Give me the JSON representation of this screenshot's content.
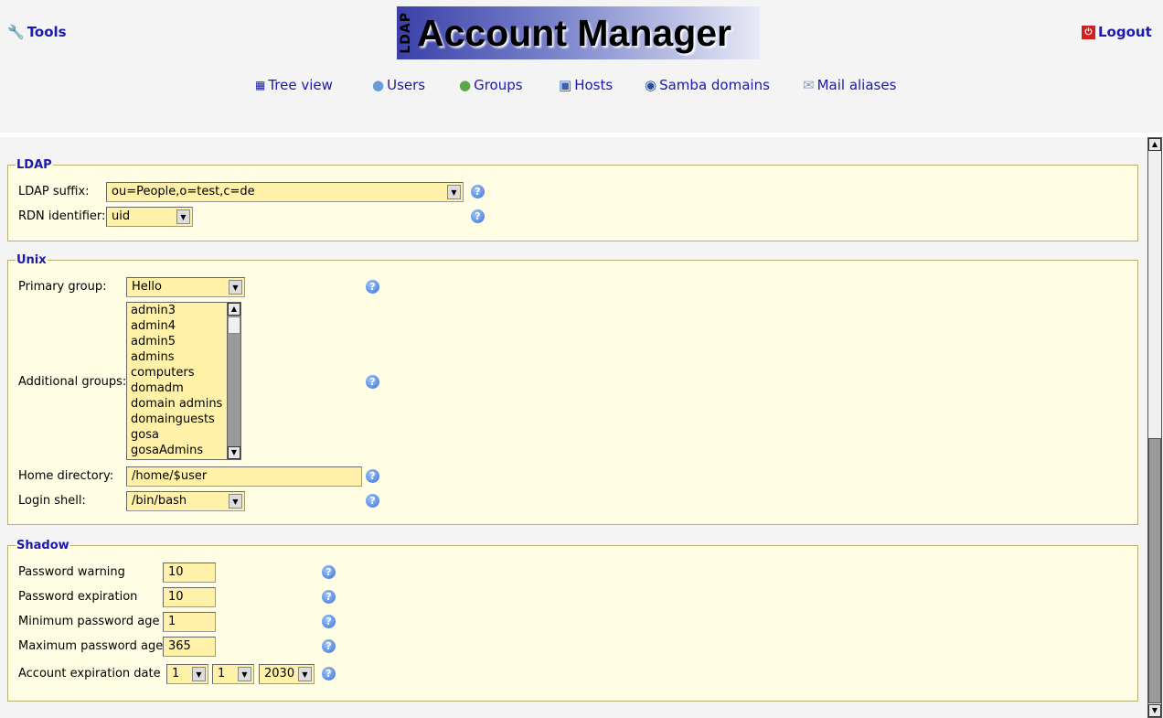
{
  "header": {
    "tools": "Tools",
    "logout": "Logout",
    "logo_small": "LDAP",
    "logo_big": "Account Manager",
    "nav": [
      {
        "label": "Tree view",
        "icon": "tree-icon"
      },
      {
        "label": "Users",
        "icon": "user-icon"
      },
      {
        "label": "Groups",
        "icon": "group-icon"
      },
      {
        "label": "Hosts",
        "icon": "host-icon"
      },
      {
        "label": "Samba domains",
        "icon": "samba-icon"
      },
      {
        "label": "Mail aliases",
        "icon": "mail-icon"
      }
    ]
  },
  "ldap": {
    "legend": "LDAP",
    "suffix_label": "LDAP suffix:",
    "suffix_value": "ou=People,o=test,c=de",
    "rdn_label": "RDN identifier:",
    "rdn_value": "uid"
  },
  "unix": {
    "legend": "Unix",
    "primary_label": "Primary group:",
    "primary_value": "Hello",
    "additional_label": "Additional groups:",
    "groups": [
      "admin3",
      "admin4",
      "admin5",
      "admins",
      "computers",
      "domadm",
      "domain admins",
      "domainguests",
      "gosa",
      "gosaAdmins"
    ],
    "home_label": "Home directory:",
    "home_value": "/home/$user",
    "shell_label": "Login shell:",
    "shell_value": "/bin/bash"
  },
  "shadow": {
    "legend": "Shadow",
    "warn_label": "Password warning",
    "warn_value": "10",
    "exp_label": "Password expiration",
    "exp_value": "10",
    "min_label": "Minimum password age",
    "min_value": "1",
    "max_label": "Maximum password age",
    "max_value": "365",
    "acct_label": "Account expiration date",
    "day": "1",
    "month": "1",
    "year": "2030"
  },
  "help_glyph": "?"
}
